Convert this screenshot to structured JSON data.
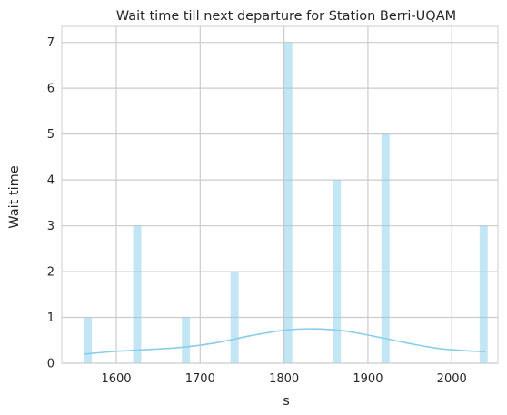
{
  "chart_data": {
    "type": "bar",
    "title": "Wait time till next departure for Station Berri-UQAM",
    "xlabel": "s",
    "ylabel": "Wait time",
    "xlim": [
      1535,
      2055
    ],
    "ylim": [
      0,
      7.35
    ],
    "x_ticks": [
      1600,
      1700,
      1800,
      1900,
      2000
    ],
    "y_ticks": [
      0,
      1,
      2,
      3,
      4,
      5,
      6,
      7
    ],
    "bin_width": 9.7,
    "bars": [
      {
        "x": 1566,
        "value": 1
      },
      {
        "x": 1625,
        "value": 3
      },
      {
        "x": 1683,
        "value": 1
      },
      {
        "x": 1741,
        "value": 2
      },
      {
        "x": 1805,
        "value": 7
      },
      {
        "x": 1863,
        "value": 4
      },
      {
        "x": 1921,
        "value": 5
      },
      {
        "x": 2038,
        "value": 3
      }
    ],
    "kde_line": {
      "x": [
        1561,
        1600,
        1640,
        1680,
        1720,
        1760,
        1800,
        1835,
        1870,
        1910,
        1950,
        1990,
        2040
      ],
      "y": [
        0.2,
        0.26,
        0.3,
        0.35,
        0.45,
        0.6,
        0.72,
        0.75,
        0.71,
        0.58,
        0.43,
        0.31,
        0.25
      ]
    },
    "grid": true,
    "colors": {
      "bar": "#87ceeb",
      "line": "#87ceeb",
      "grid": "#cccccc",
      "spine": "#cccccc",
      "text": "#262626"
    }
  }
}
